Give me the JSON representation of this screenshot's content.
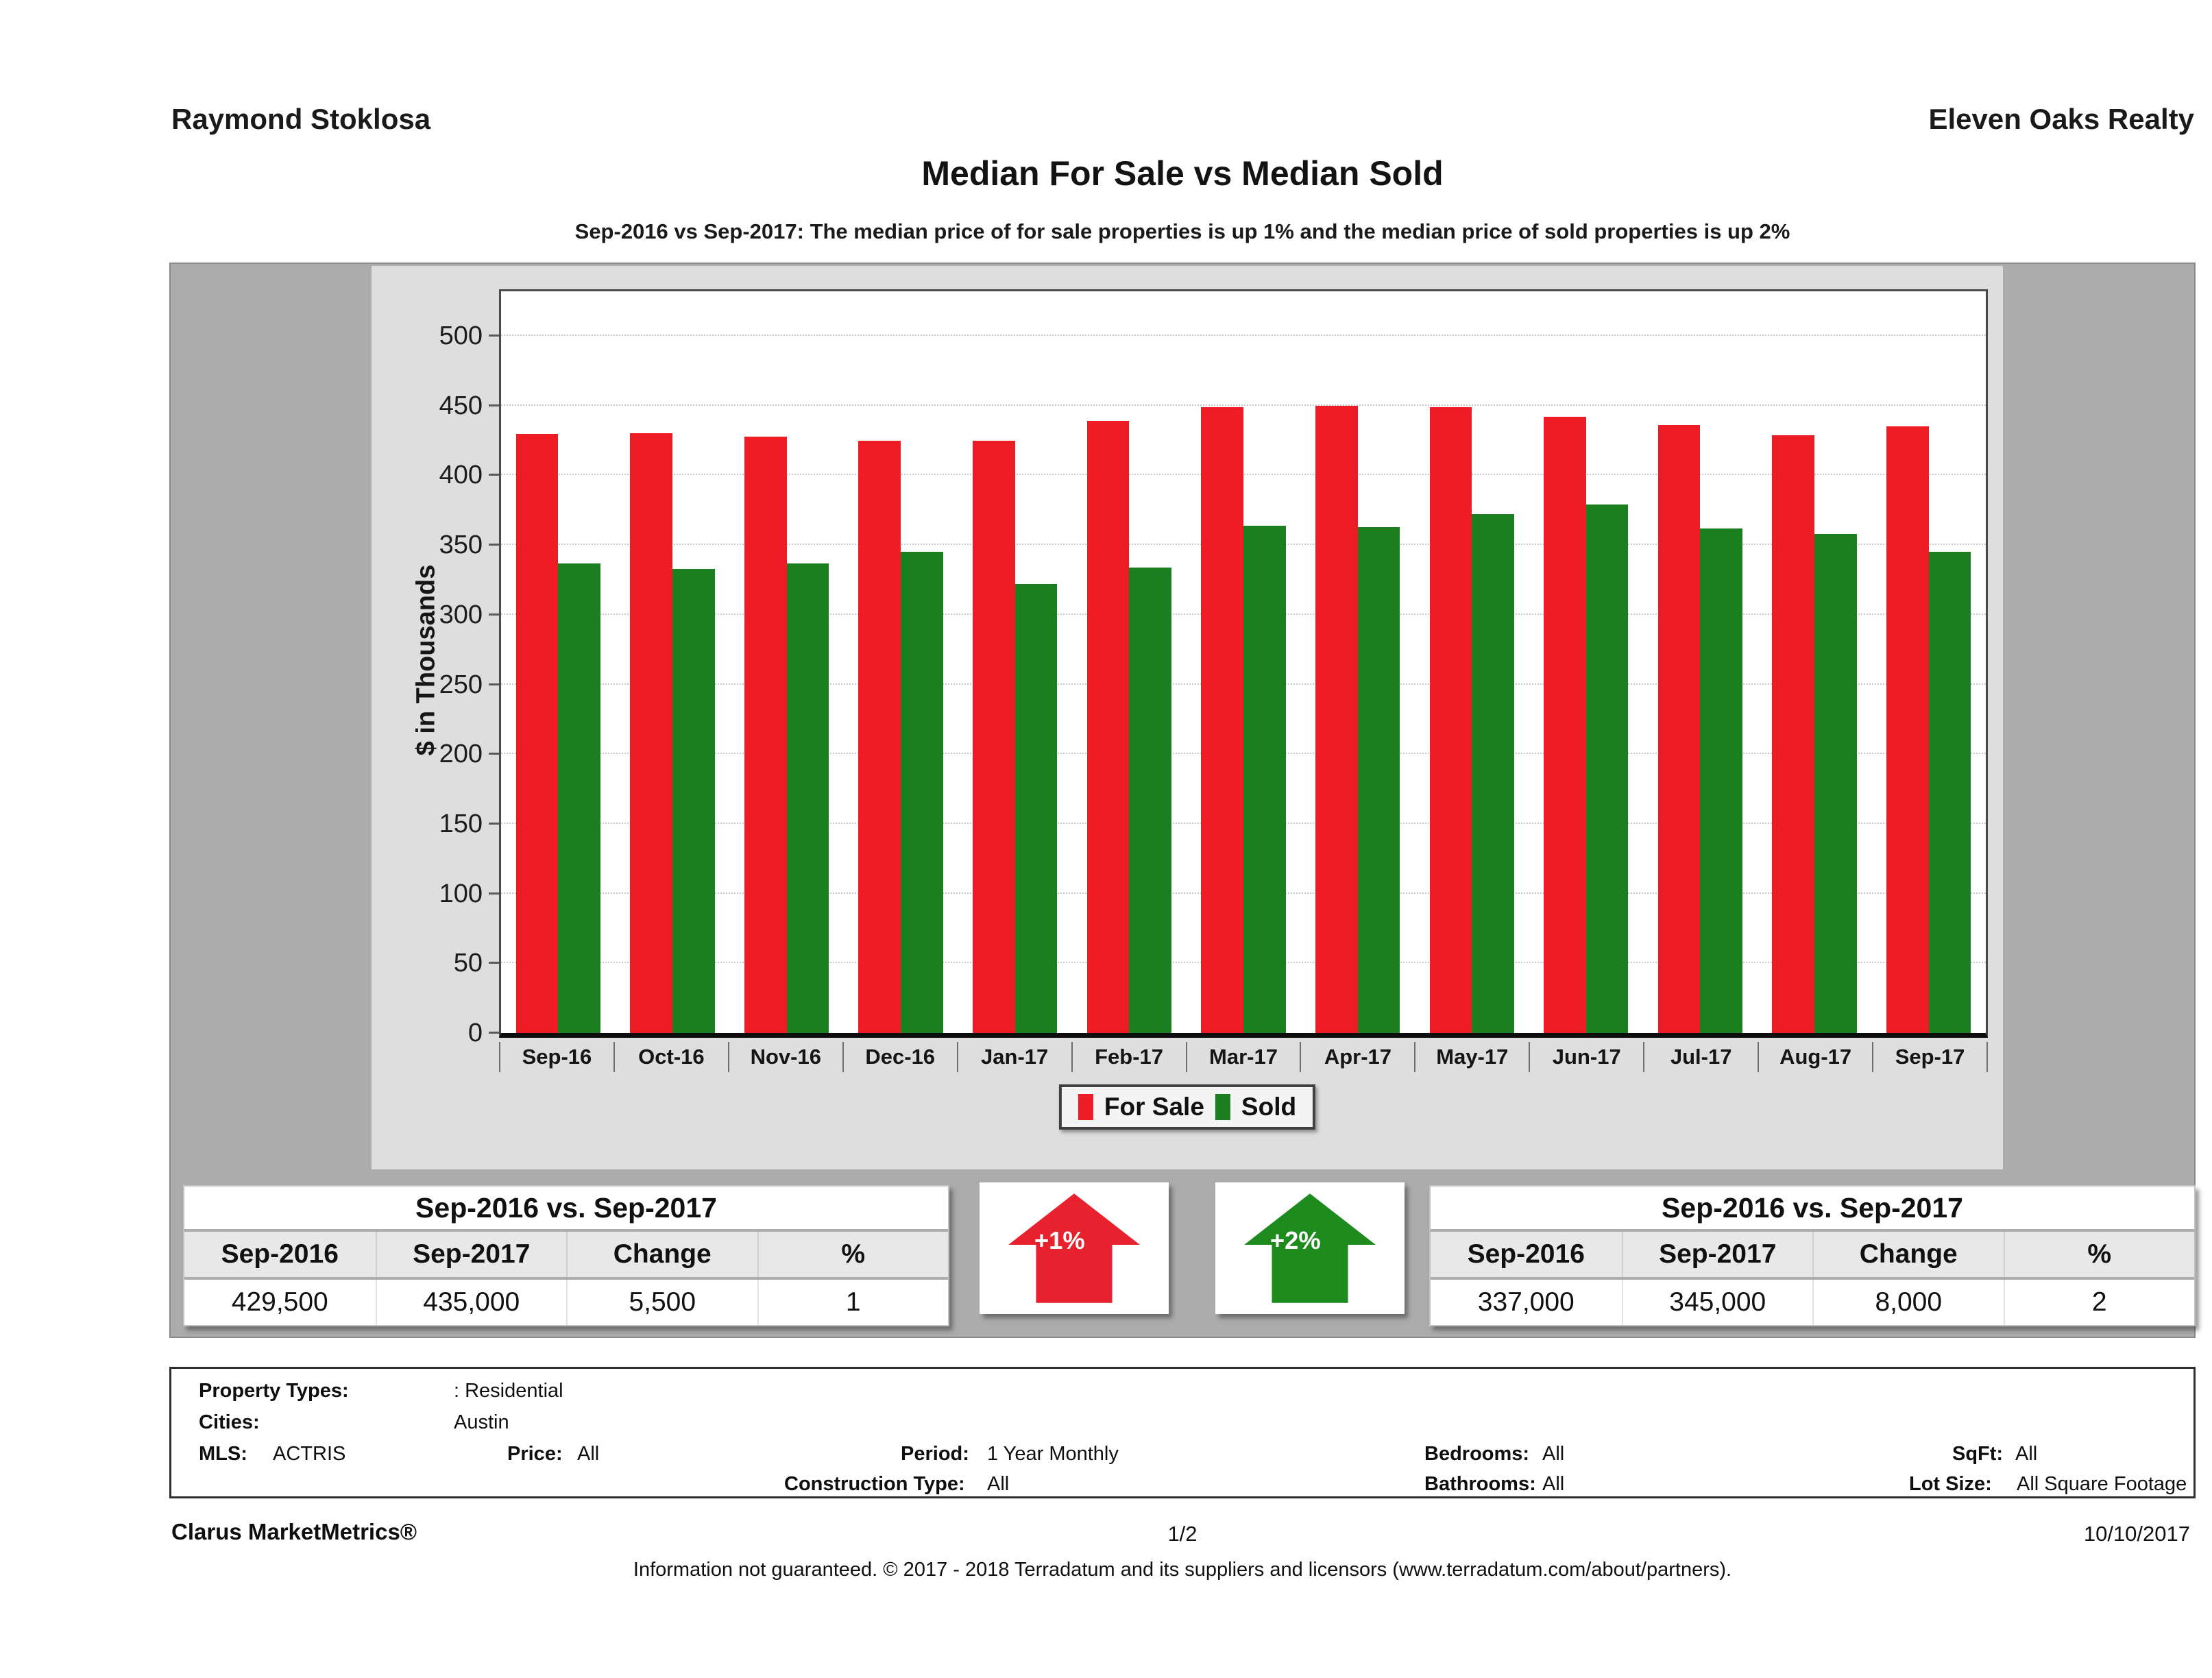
{
  "header": {
    "agent": "Raymond Stoklosa",
    "company": "Eleven Oaks Realty"
  },
  "title": "Median For Sale vs Median Sold",
  "subtitle": "Sep-2016 vs Sep-2017: The median price of for sale properties is up 1% and the median price of sold properties is up 2%",
  "chart_data": {
    "type": "bar",
    "title": "Median For Sale vs Median Sold",
    "categories": [
      "Sep-16",
      "Oct-16",
      "Nov-16",
      "Dec-16",
      "Jan-17",
      "Feb-17",
      "Mar-17",
      "Apr-17",
      "May-17",
      "Jun-17",
      "Jul-17",
      "Aug-17",
      "Sep-17"
    ],
    "series": [
      {
        "name": "For Sale",
        "color": "#ee1c25",
        "values": [
          429.5,
          430,
          428,
          425,
          425,
          439,
          449,
          450,
          449,
          442,
          436,
          429,
          435
        ]
      },
      {
        "name": "Sold",
        "color": "#1b7e1f",
        "values": [
          337,
          333,
          337,
          345,
          322,
          334,
          364,
          363,
          372,
          379,
          362,
          358,
          345
        ]
      }
    ],
    "xlabel": "",
    "ylabel": "$ in Thousands",
    "ylim": [
      0,
      500
    ],
    "ytick_step": 50,
    "grid": "horizontal-dotted",
    "legend_position": "bottom"
  },
  "summary_left": {
    "title": "Sep-2016 vs. Sep-2017",
    "headers": [
      "Sep-2016",
      "Sep-2017",
      "Change",
      "%"
    ],
    "values": [
      "429,500",
      "435,000",
      "5,500",
      "1"
    ]
  },
  "summary_right": {
    "title": "Sep-2016 vs. Sep-2017",
    "headers": [
      "Sep-2016",
      "Sep-2017",
      "Change",
      "%"
    ],
    "values": [
      "337,000",
      "345,000",
      "8,000",
      "2"
    ]
  },
  "arrows": [
    {
      "label": "+1%",
      "color": "#e8212e"
    },
    {
      "label": "+2%",
      "color": "#1e8b1e"
    }
  ],
  "filters": {
    "property_types_label": "Property Types:",
    "property_types_value": ": Residential",
    "cities_label": "Cities:",
    "cities_value": "Austin",
    "mls_label": "MLS:",
    "mls_value": "ACTRIS",
    "price_label": "Price:",
    "price_value": "All",
    "period_label": "Period:",
    "period_value": "1 Year Monthly",
    "bedrooms_label": "Bedrooms:",
    "bedrooms_value": "All",
    "sqft_label": "SqFt:",
    "sqft_value": "All",
    "construction_label": "Construction Type:",
    "construction_value": "All",
    "bathrooms_label": "Bathrooms:",
    "bathrooms_value": "All",
    "lot_label": "Lot Size:",
    "lot_value": "All Square Footage"
  },
  "footer": {
    "brand": "Clarus MarketMetrics®",
    "page": "1/2",
    "date": "10/10/2017",
    "disclaimer": "Information not guaranteed. © 2017 - 2018 Terradatum and its suppliers and licensors (www.terradatum.com/about/partners)."
  }
}
